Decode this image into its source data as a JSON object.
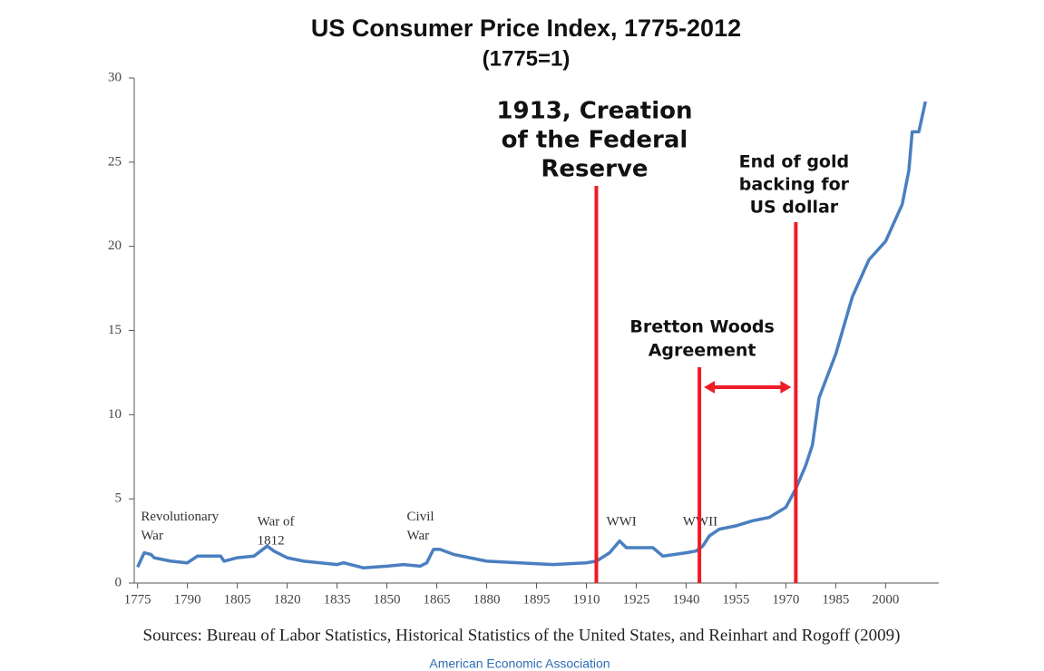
{
  "chart_data": {
    "type": "line",
    "title": "US Consumer Price Index, 1775-2012",
    "subtitle": "(1775=1)",
    "x": [
      1775,
      1777,
      1779,
      1780,
      1785,
      1790,
      1793,
      1795,
      1800,
      1801,
      1805,
      1810,
      1814,
      1816,
      1820,
      1825,
      1830,
      1835,
      1837,
      1843,
      1850,
      1855,
      1860,
      1862,
      1864,
      1866,
      1870,
      1880,
      1890,
      1900,
      1910,
      1913,
      1917,
      1920,
      1922,
      1925,
      1930,
      1933,
      1940,
      1943,
      1945,
      1947,
      1950,
      1955,
      1960,
      1965,
      1970,
      1973,
      1976,
      1978,
      1980,
      1985,
      1990,
      1995,
      2000,
      2005,
      2007,
      2008,
      2010,
      2012
    ],
    "series": [
      {
        "name": "CPI",
        "color": "#4a7fc0",
        "values": [
          0.95,
          1.8,
          1.7,
          1.5,
          1.3,
          1.2,
          1.6,
          1.6,
          1.6,
          1.3,
          1.5,
          1.6,
          2.2,
          1.9,
          1.5,
          1.3,
          1.2,
          1.1,
          1.2,
          0.9,
          1.0,
          1.1,
          1.0,
          1.2,
          2.0,
          2.0,
          1.7,
          1.3,
          1.2,
          1.1,
          1.2,
          1.3,
          1.8,
          2.5,
          2.1,
          2.1,
          2.1,
          1.6,
          1.8,
          1.9,
          2.2,
          2.8,
          3.2,
          3.4,
          3.7,
          3.9,
          4.5,
          5.6,
          7.0,
          8.2,
          11.0,
          13.6,
          17.0,
          19.2,
          20.3,
          22.5,
          24.5,
          26.8,
          26.8,
          28.6
        ]
      }
    ],
    "xlim": [
      1774,
      2016
    ],
    "ylim": [
      0,
      30
    ],
    "xticks": [
      1775,
      1790,
      1805,
      1820,
      1835,
      1850,
      1865,
      1880,
      1895,
      1910,
      1925,
      1940,
      1955,
      1970,
      1985,
      2000
    ],
    "yticks": [
      0,
      5,
      10,
      15,
      20,
      25,
      30
    ],
    "annotations": [
      {
        "text": [
          "Revolutionary",
          "War"
        ],
        "x": 1776,
        "y": 3.9
      },
      {
        "text": [
          "War of",
          "1812"
        ],
        "x": 1811,
        "y": 3.6
      },
      {
        "text": [
          "Civil",
          "War"
        ],
        "x": 1856,
        "y": 3.9
      },
      {
        "text": [
          "WWI"
        ],
        "x": 1916,
        "y": 3.6
      },
      {
        "text": [
          "WWII"
        ],
        "x": 1939,
        "y": 3.6
      }
    ],
    "events": [
      {
        "text": [
          "1913, Creation",
          "of the Federal",
          "Reserve"
        ],
        "x": 1913
      },
      {
        "text": [
          "Bretton Woods",
          "Agreement"
        ],
        "x": 1944
      },
      {
        "text": [
          "End of gold",
          "backing for",
          "US dollar"
        ],
        "x": 1973
      }
    ],
    "event_color": "#ee1c25",
    "source": "Sources: Bureau of Labor Statistics, Historical Statistics of the United States, and Reinhart and Rogoff (2009)",
    "credit": "American Economic Association"
  }
}
